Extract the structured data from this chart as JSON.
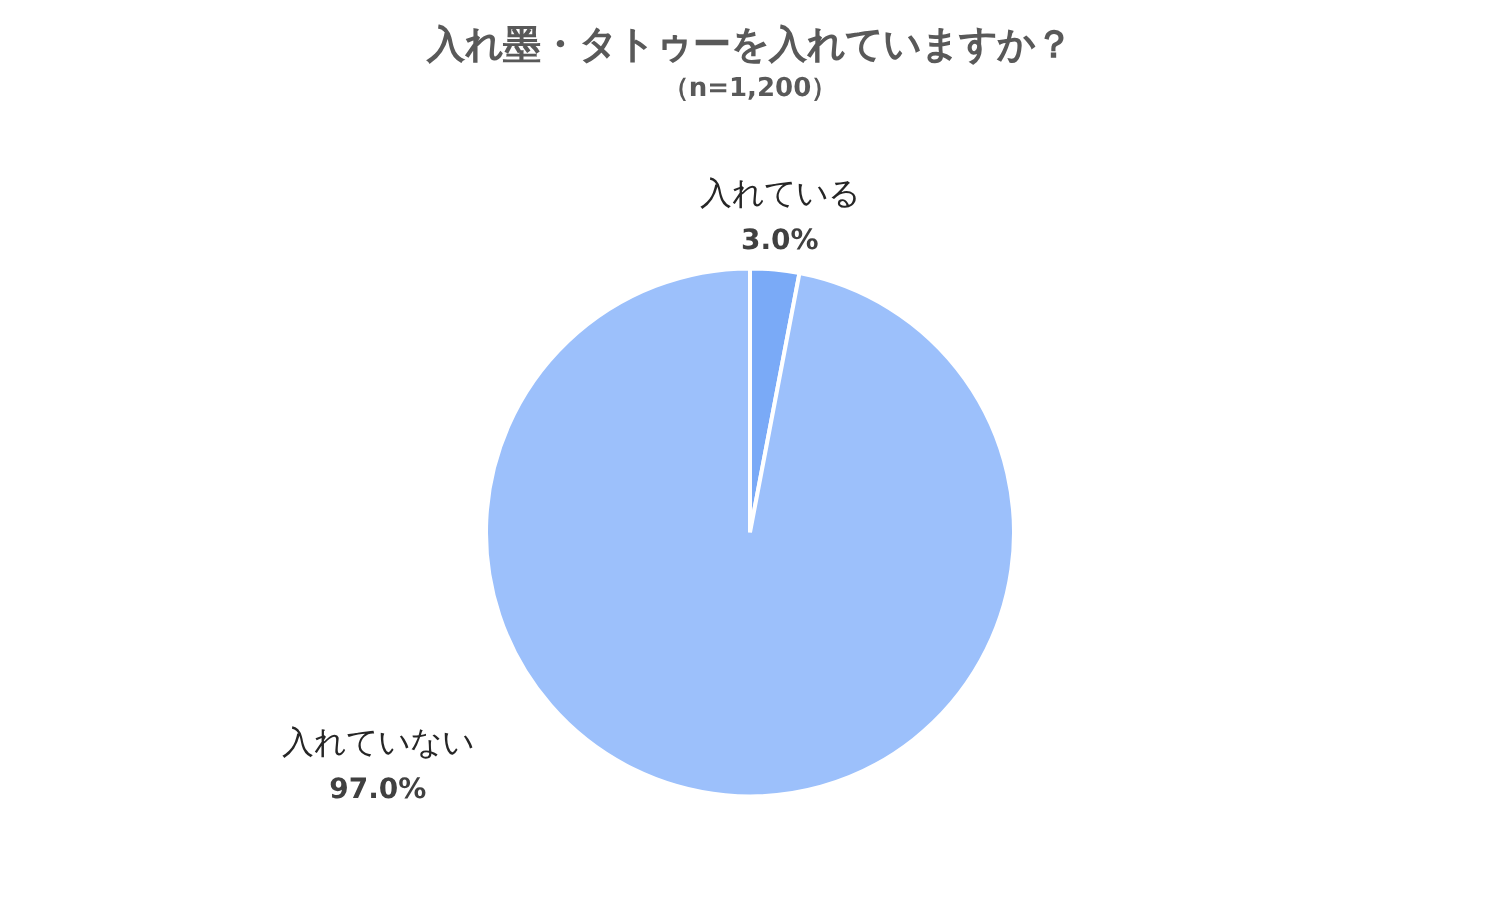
{
  "chart_data": {
    "type": "pie",
    "title": "入れ墨・タトゥーを入れていますか？",
    "subtitle": "（n=1,200）",
    "categories": [
      "入れている",
      "入れていない"
    ],
    "values": [
      3.0,
      97.0
    ],
    "value_labels": [
      "3.0%",
      "97.0%"
    ],
    "colors": [
      "#7aaaf7",
      "#9cc0fb"
    ],
    "legend": false
  }
}
